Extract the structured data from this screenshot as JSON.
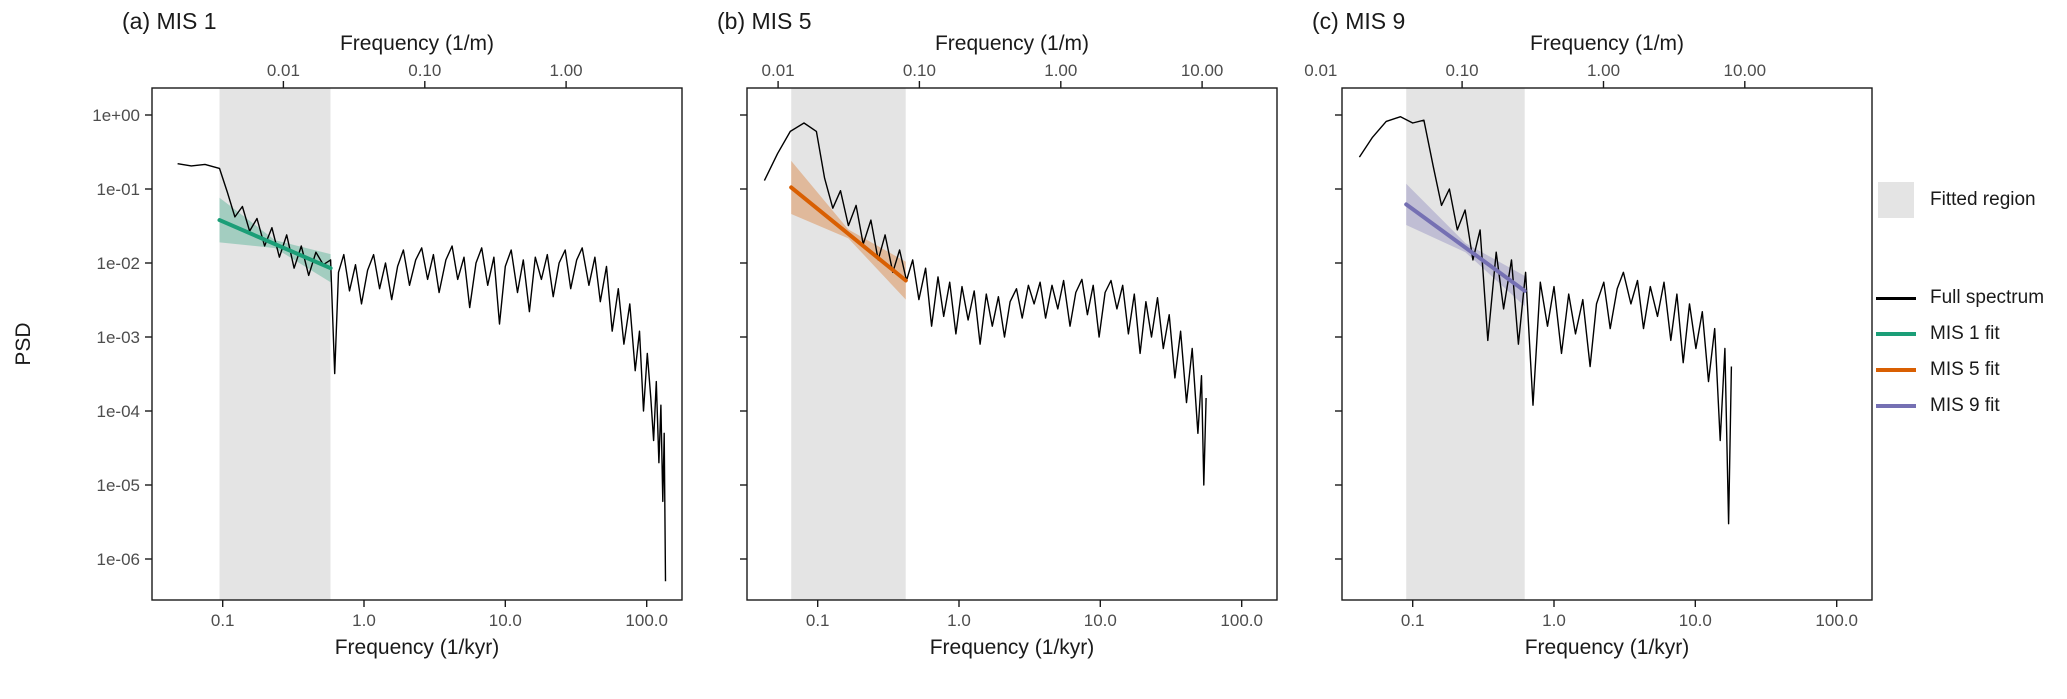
{
  "figure": {
    "background": "#ffffff"
  },
  "colors": {
    "fitted_region": "#e4e4e4",
    "spectrum": "#000000",
    "mis1": "#1B9E77",
    "mis5": "#D95F02",
    "mis9": "#7570B3",
    "tick_text": "#4d4d4d",
    "panel_border": "#1a1a1a"
  },
  "legend": {
    "fitted_region": {
      "label": "Fitted region",
      "swatch_color": "#e4e4e4"
    },
    "items": [
      {
        "label": "Full spectrum",
        "color": "#000000"
      },
      {
        "label": "MIS 1 fit",
        "color": "#1B9E77"
      },
      {
        "label": "MIS 5 fit",
        "color": "#D95F02"
      },
      {
        "label": "MIS 9 fit",
        "color": "#7570B3"
      }
    ]
  },
  "chart_data": [
    {
      "type": "line",
      "title": "(a) MIS 1",
      "xlabel_top": "Frequency (1/m)",
      "xlabel_bottom": "Frequency (1/kyr)",
      "ylabel": "PSD",
      "x_scale": "log",
      "y_scale": "log",
      "xlim": [
        0.0316,
        178
      ],
      "ylim": [
        2.8e-07,
        2.3
      ],
      "x_ticks_bottom": [
        {
          "label": "0.1",
          "value": 0.1
        },
        {
          "label": "1.0",
          "value": 1
        },
        {
          "label": "10.0",
          "value": 10
        },
        {
          "label": "100.0",
          "value": 100
        }
      ],
      "top_offset_log": 1.43,
      "x_ticks_top": [
        {
          "label": "0.01",
          "value": 0.01
        },
        {
          "label": "0.10",
          "value": 0.1
        },
        {
          "label": "1.00",
          "value": 1
        }
      ],
      "y_ticks": [
        {
          "label": "1e+00",
          "value": 1
        },
        {
          "label": "1e-01",
          "value": 0.1
        },
        {
          "label": "1e-02",
          "value": 0.01
        },
        {
          "label": "1e-03",
          "value": 0.001
        },
        {
          "label": "1e-04",
          "value": 0.0001
        },
        {
          "label": "1e-05",
          "value": 1e-05
        },
        {
          "label": "1e-06",
          "value": 1e-06
        }
      ],
      "fitted_region": [
        0.095,
        0.58
      ],
      "color": "#1B9E77",
      "fit": {
        "name": "MIS 1 fit",
        "x": [
          0.095,
          0.58
        ],
        "y": [
          0.038,
          0.0085
        ]
      },
      "ribbon": {
        "x": [
          0.095,
          0.235,
          0.58
        ],
        "upper": [
          0.076,
          0.0203,
          0.0132
        ],
        "lower": [
          0.019,
          0.0159,
          0.0055
        ]
      },
      "spectrum_name": "Full spectrum",
      "spectrum": [
        [
          0.048,
          0.22
        ],
        [
          0.06,
          0.205
        ],
        [
          0.075,
          0.215
        ],
        [
          0.095,
          0.19
        ],
        [
          0.108,
          0.09
        ],
        [
          0.122,
          0.042
        ],
        [
          0.138,
          0.058
        ],
        [
          0.155,
          0.027
        ],
        [
          0.175,
          0.04
        ],
        [
          0.198,
          0.017
        ],
        [
          0.223,
          0.03
        ],
        [
          0.252,
          0.012
        ],
        [
          0.284,
          0.024
        ],
        [
          0.32,
          0.0085
        ],
        [
          0.36,
          0.017
        ],
        [
          0.406,
          0.0068
        ],
        [
          0.457,
          0.014
        ],
        [
          0.515,
          0.0095
        ],
        [
          0.58,
          0.011
        ],
        [
          0.62,
          0.00032
        ],
        [
          0.66,
          0.0075
        ],
        [
          0.72,
          0.013
        ],
        [
          0.79,
          0.0042
        ],
        [
          0.87,
          0.0095
        ],
        [
          0.96,
          0.0028
        ],
        [
          1.06,
          0.008
        ],
        [
          1.17,
          0.013
        ],
        [
          1.29,
          0.0045
        ],
        [
          1.42,
          0.01
        ],
        [
          1.57,
          0.0032
        ],
        [
          1.73,
          0.009
        ],
        [
          1.9,
          0.015
        ],
        [
          2.1,
          0.005
        ],
        [
          2.32,
          0.011
        ],
        [
          2.56,
          0.016
        ],
        [
          2.82,
          0.006
        ],
        [
          3.1,
          0.013
        ],
        [
          3.4,
          0.004
        ],
        [
          3.8,
          0.011
        ],
        [
          4.2,
          0.017
        ],
        [
          4.6,
          0.006
        ],
        [
          5.1,
          0.012
        ],
        [
          5.6,
          0.0025
        ],
        [
          6.2,
          0.01
        ],
        [
          6.8,
          0.016
        ],
        [
          7.5,
          0.005
        ],
        [
          8.3,
          0.012
        ],
        [
          9.1,
          0.0015
        ],
        [
          10,
          0.009
        ],
        [
          11,
          0.015
        ],
        [
          12.2,
          0.004
        ],
        [
          13.4,
          0.011
        ],
        [
          14.8,
          0.0022
        ],
        [
          16.3,
          0.012
        ],
        [
          18,
          0.006
        ],
        [
          19.8,
          0.013
        ],
        [
          21.8,
          0.0035
        ],
        [
          24,
          0.01
        ],
        [
          26.5,
          0.015
        ],
        [
          29,
          0.0045
        ],
        [
          32,
          0.011
        ],
        [
          35,
          0.016
        ],
        [
          39,
          0.005
        ],
        [
          43,
          0.012
        ],
        [
          47,
          0.003
        ],
        [
          52,
          0.009
        ],
        [
          57,
          0.0012
        ],
        [
          63,
          0.0045
        ],
        [
          69,
          0.0008
        ],
        [
          76,
          0.0028
        ],
        [
          83,
          0.00035
        ],
        [
          89,
          0.0012
        ],
        [
          95,
          0.0001
        ],
        [
          101,
          0.0006
        ],
        [
          107,
          0.00015
        ],
        [
          112,
          4e-05
        ],
        [
          117,
          0.00025
        ],
        [
          122,
          2e-05
        ],
        [
          126,
          0.00012
        ],
        [
          130,
          6e-06
        ],
        [
          133,
          5e-05
        ],
        [
          136,
          5e-07
        ]
      ]
    },
    {
      "type": "line",
      "title": "(b) MIS 5",
      "xlabel_top": "Frequency (1/m)",
      "xlabel_bottom": "Frequency (1/kyr)",
      "ylabel": "PSD",
      "x_scale": "log",
      "y_scale": "log",
      "xlim": [
        0.0316,
        178
      ],
      "ylim": [
        2.8e-07,
        2.3
      ],
      "x_ticks_bottom": [
        {
          "label": "0.1",
          "value": 0.1
        },
        {
          "label": "1.0",
          "value": 1
        },
        {
          "label": "10.0",
          "value": 10
        },
        {
          "label": "100.0",
          "value": 100
        }
      ],
      "top_offset_log": 0.72,
      "x_ticks_top": [
        {
          "label": "0.01",
          "value": 0.01
        },
        {
          "label": "0.10",
          "value": 0.1
        },
        {
          "label": "1.00",
          "value": 1
        },
        {
          "label": "10.00",
          "value": 10
        }
      ],
      "fitted_region": [
        0.065,
        0.42
      ],
      "color": "#D95F02",
      "fit": {
        "name": "MIS 5 fit",
        "x": [
          0.065,
          0.42
        ],
        "y": [
          0.105,
          0.0058
        ]
      },
      "ribbon": {
        "x": [
          0.065,
          0.165,
          0.42
        ],
        "upper": [
          0.24,
          0.0284,
          0.0104
        ],
        "lower": [
          0.046,
          0.0215,
          0.0032
        ]
      },
      "spectrum_name": "Full spectrum",
      "spectrum": [
        [
          0.042,
          0.13
        ],
        [
          0.052,
          0.3
        ],
        [
          0.064,
          0.6
        ],
        [
          0.08,
          0.78
        ],
        [
          0.098,
          0.6
        ],
        [
          0.112,
          0.14
        ],
        [
          0.128,
          0.055
        ],
        [
          0.145,
          0.095
        ],
        [
          0.165,
          0.032
        ],
        [
          0.187,
          0.06
        ],
        [
          0.21,
          0.018
        ],
        [
          0.238,
          0.038
        ],
        [
          0.268,
          0.011
        ],
        [
          0.3,
          0.024
        ],
        [
          0.34,
          0.0075
        ],
        [
          0.38,
          0.015
        ],
        [
          0.425,
          0.0058
        ],
        [
          0.47,
          0.011
        ],
        [
          0.52,
          0.0032
        ],
        [
          0.58,
          0.0085
        ],
        [
          0.64,
          0.0014
        ],
        [
          0.71,
          0.0065
        ],
        [
          0.78,
          0.0019
        ],
        [
          0.86,
          0.0055
        ],
        [
          0.95,
          0.0011
        ],
        [
          1.05,
          0.0048
        ],
        [
          1.16,
          0.0017
        ],
        [
          1.28,
          0.0042
        ],
        [
          1.41,
          0.0008
        ],
        [
          1.56,
          0.0038
        ],
        [
          1.72,
          0.0014
        ],
        [
          1.9,
          0.0035
        ],
        [
          2.1,
          0.001
        ],
        [
          2.3,
          0.003
        ],
        [
          2.55,
          0.0045
        ],
        [
          2.8,
          0.0018
        ],
        [
          3.1,
          0.005
        ],
        [
          3.4,
          0.0028
        ],
        [
          3.75,
          0.0055
        ],
        [
          4.1,
          0.0018
        ],
        [
          4.55,
          0.005
        ],
        [
          5,
          0.0024
        ],
        [
          5.5,
          0.0058
        ],
        [
          6.1,
          0.0014
        ],
        [
          6.7,
          0.004
        ],
        [
          7.4,
          0.006
        ],
        [
          8.1,
          0.002
        ],
        [
          8.9,
          0.005
        ],
        [
          9.8,
          0.001
        ],
        [
          10.8,
          0.004
        ],
        [
          11.9,
          0.0058
        ],
        [
          13.1,
          0.0024
        ],
        [
          14.4,
          0.005
        ],
        [
          15.8,
          0.0011
        ],
        [
          17.4,
          0.0038
        ],
        [
          19.1,
          0.0006
        ],
        [
          21,
          0.003
        ],
        [
          23,
          0.001
        ],
        [
          25.4,
          0.0034
        ],
        [
          27.9,
          0.0007
        ],
        [
          30.7,
          0.002
        ],
        [
          33.7,
          0.00028
        ],
        [
          37,
          0.0012
        ],
        [
          40.7,
          0.00013
        ],
        [
          44.7,
          0.0007
        ],
        [
          49,
          5e-05
        ],
        [
          52,
          0.0003
        ],
        [
          54,
          1e-05
        ],
        [
          56,
          0.00015
        ]
      ]
    },
    {
      "type": "line",
      "title": "(c) MIS 9",
      "xlabel_top": "Frequency (1/m)",
      "xlabel_bottom": "Frequency (1/kyr)",
      "ylabel": "PSD",
      "x_scale": "log",
      "y_scale": "log",
      "xlim": [
        0.0316,
        178
      ],
      "ylim": [
        2.8e-07,
        2.3
      ],
      "x_ticks_bottom": [
        {
          "label": "0.1",
          "value": 0.1
        },
        {
          "label": "1.0",
          "value": 1
        },
        {
          "label": "10.0",
          "value": 10
        },
        {
          "label": "100.0",
          "value": 100
        }
      ],
      "top_offset_log": 0.35,
      "x_ticks_top": [
        {
          "label": "0.01",
          "value": 0.01
        },
        {
          "label": "0.10",
          "value": 0.1
        },
        {
          "label": "1.00",
          "value": 1
        },
        {
          "label": "10.00",
          "value": 10
        }
      ],
      "fitted_region": [
        0.09,
        0.62
      ],
      "color": "#7570B3",
      "fit": {
        "name": "MIS 9 fit",
        "x": [
          0.09,
          0.62
        ],
        "y": [
          0.062,
          0.0042
        ]
      },
      "ribbon": {
        "x": [
          0.09,
          0.236,
          0.62
        ],
        "upper": [
          0.118,
          0.0186,
          0.0067
        ],
        "lower": [
          0.0326,
          0.014,
          0.0026
        ]
      },
      "spectrum_name": "Full spectrum",
      "spectrum": [
        [
          0.042,
          0.27
        ],
        [
          0.052,
          0.5
        ],
        [
          0.065,
          0.82
        ],
        [
          0.082,
          0.95
        ],
        [
          0.1,
          0.78
        ],
        [
          0.12,
          0.85
        ],
        [
          0.14,
          0.2
        ],
        [
          0.16,
          0.06
        ],
        [
          0.182,
          0.1
        ],
        [
          0.207,
          0.028
        ],
        [
          0.235,
          0.052
        ],
        [
          0.267,
          0.011
        ],
        [
          0.3,
          0.028
        ],
        [
          0.34,
          0.0009
        ],
        [
          0.39,
          0.014
        ],
        [
          0.44,
          0.0024
        ],
        [
          0.5,
          0.011
        ],
        [
          0.56,
          0.0008
        ],
        [
          0.63,
          0.0075
        ],
        [
          0.71,
          0.00012
        ],
        [
          0.8,
          0.0055
        ],
        [
          0.9,
          0.0014
        ],
        [
          1,
          0.0048
        ],
        [
          1.13,
          0.0006
        ],
        [
          1.27,
          0.0038
        ],
        [
          1.42,
          0.0011
        ],
        [
          1.6,
          0.0032
        ],
        [
          1.8,
          0.0004
        ],
        [
          2,
          0.0028
        ],
        [
          2.25,
          0.0055
        ],
        [
          2.5,
          0.0013
        ],
        [
          2.8,
          0.0045
        ],
        [
          3.1,
          0.0075
        ],
        [
          3.5,
          0.0028
        ],
        [
          3.9,
          0.0058
        ],
        [
          4.3,
          0.0013
        ],
        [
          4.8,
          0.0048
        ],
        [
          5.4,
          0.0019
        ],
        [
          6,
          0.0055
        ],
        [
          6.7,
          0.0009
        ],
        [
          7.4,
          0.0038
        ],
        [
          8.2,
          0.00045
        ],
        [
          9.1,
          0.0028
        ],
        [
          10.1,
          0.0007
        ],
        [
          11.2,
          0.0022
        ],
        [
          12.4,
          0.00025
        ],
        [
          13.7,
          0.0013
        ],
        [
          15,
          4e-05
        ],
        [
          16.2,
          0.0007
        ],
        [
          17.2,
          3e-06
        ],
        [
          18,
          0.0004
        ]
      ]
    }
  ]
}
